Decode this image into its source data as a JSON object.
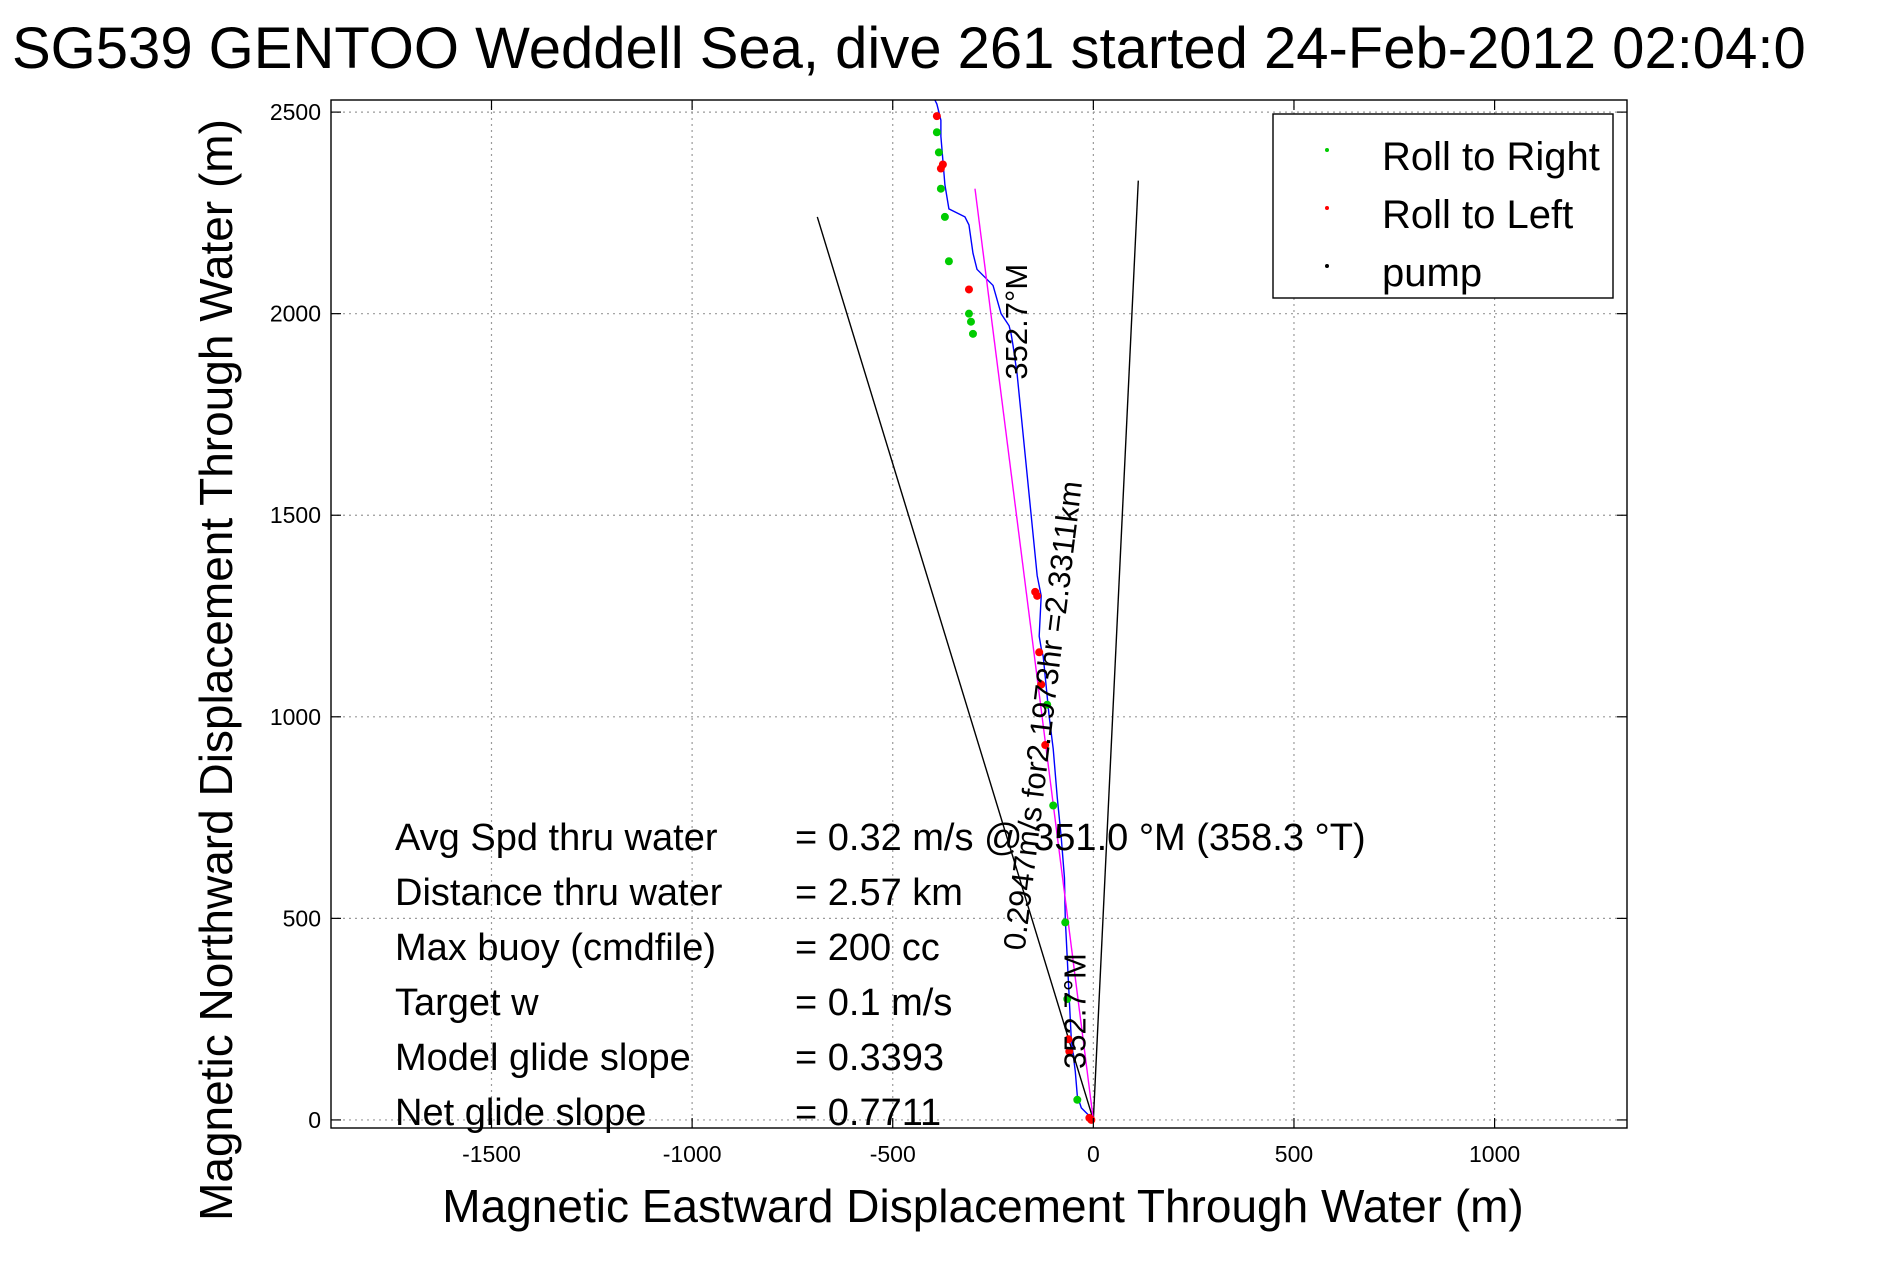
{
  "chart_data": {
    "type": "line",
    "title": "SG539 GENTOO Weddell Sea, dive 261 started 24-Feb-2012 02:04:0",
    "xlabel": "Magnetic Eastward Displacement Through Water (m)",
    "ylabel": "Magnetic Northward Displacement Through Water (m)",
    "xlim": [
      -1900,
      1330
    ],
    "ylim": [
      -20,
      2530
    ],
    "x_ticks": [
      -1500,
      -1000,
      -500,
      0,
      500,
      1000
    ],
    "y_ticks": [
      0,
      500,
      1000,
      1500,
      2000,
      2500
    ],
    "x_tick_labels": [
      "-1500",
      "-1000",
      "-500",
      "0",
      "500",
      "1000"
    ],
    "y_tick_labels": [
      "0",
      "500",
      "1000",
      "1500",
      "2000",
      "2500"
    ],
    "grid": true,
    "legend_position": "top-right",
    "legend": [
      {
        "label": "Roll to Right",
        "color": "#00cc00"
      },
      {
        "label": "Roll to Left",
        "color": "#ff0000"
      },
      {
        "label": "pump",
        "color": "#000000"
      }
    ],
    "series": [
      {
        "color": "#0000ff",
        "x": [
          0,
          -10,
          -30,
          -40,
          -45,
          -55,
          -60,
          -65,
          -70,
          -72,
          -80,
          -90,
          -100,
          -110,
          -115,
          -120,
          -125,
          -130,
          -135,
          -130,
          -140,
          -150,
          -160,
          -170,
          -180,
          -190,
          -200,
          -205,
          -210,
          -230,
          -250,
          -290,
          -300,
          -310,
          -320,
          -360,
          -370,
          -375,
          -380,
          -380,
          -385,
          -390,
          -395
        ],
        "y": [
          0,
          10,
          30,
          60,
          120,
          200,
          300,
          400,
          500,
          600,
          700,
          800,
          920,
          1000,
          1050,
          1100,
          1150,
          1170,
          1200,
          1300,
          1350,
          1450,
          1550,
          1650,
          1750,
          1850,
          1920,
          1950,
          1970,
          2000,
          2070,
          2110,
          2150,
          2220,
          2240,
          2260,
          2320,
          2380,
          2440,
          2480,
          2500,
          2520,
          2530
        ]
      },
      {
        "color": "#ff00ff",
        "x": [
          0,
          -295
        ],
        "y": [
          0,
          2310
        ]
      }
    ],
    "markers": {
      "roll_right": {
        "color": "#00cc00",
        "x": [
          -40,
          -65,
          -70,
          -100,
          -115,
          -130,
          -300,
          -305,
          -310,
          -360,
          -370,
          -380,
          -385,
          -390
        ],
        "y": [
          50,
          300,
          490,
          780,
          1030,
          1080,
          1950,
          1980,
          2000,
          2130,
          2240,
          2310,
          2400,
          2450
        ]
      },
      "roll_left": {
        "color": "#ff0000",
        "x": [
          -5,
          -10,
          -60,
          -62,
          -120,
          -130,
          -135,
          -140,
          -145,
          -310,
          -375,
          -380,
          -390
        ],
        "y": [
          0,
          5,
          170,
          200,
          930,
          1080,
          1160,
          1300,
          1310,
          2060,
          2370,
          2360,
          2490
        ]
      }
    },
    "guide_lines": [
      {
        "color": "#000000",
        "x": [
          0,
          -688
        ],
        "y": [
          0,
          2240
        ]
      },
      {
        "color": "#000000",
        "x": [
          0,
          112
        ],
        "y": [
          0,
          2330
        ]
      }
    ],
    "annotations": [
      {
        "text": "352.7°M",
        "x": -165,
        "y": 1980,
        "rotation": -90
      },
      {
        "text": "0.2947m/s for2.1973hr =2.3311km",
        "x": -100,
        "y": 1000,
        "rotation": -83
      },
      {
        "text": "352.7°M",
        "x": -20,
        "y": 270,
        "rotation": -90
      }
    ],
    "stats": [
      {
        "label": "Avg Spd thru water",
        "value": "=  0.32 m/s @ 351.0 °M (358.3 °T)"
      },
      {
        "label": "Distance thru water",
        "value": "=  2.57 km"
      },
      {
        "label": "Max buoy (cmdfile)",
        "value": "= 200 cc"
      },
      {
        "label": "Target w",
        "value": "= 0.1 m/s"
      },
      {
        "label": "Model glide slope",
        "value": "= 0.3393"
      },
      {
        "label": "Net glide slope",
        "value": "= 0.7711"
      }
    ]
  }
}
